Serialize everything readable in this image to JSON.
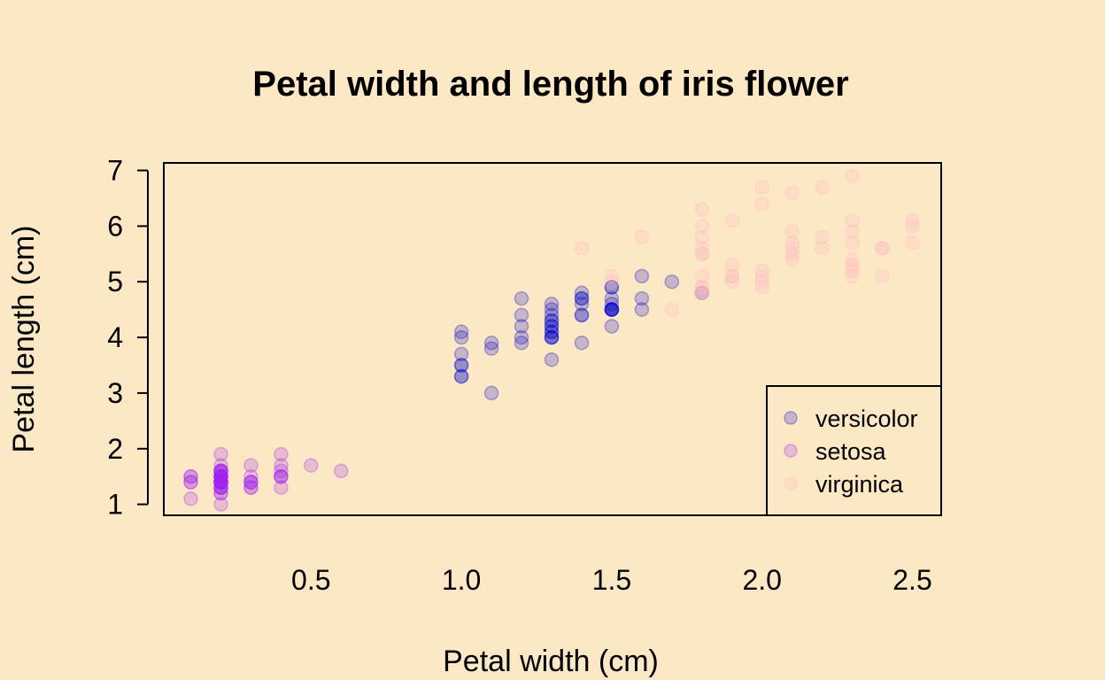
{
  "chart_data": {
    "type": "scatter",
    "title": "Petal width and length of iris flower",
    "xlabel": "Petal width (cm)",
    "ylabel": "Petal length (cm)",
    "xlim": [
      0.1,
      2.5
    ],
    "ylim": [
      1,
      6.9
    ],
    "x_ticks": [
      0.5,
      1.0,
      1.5,
      2.0,
      2.5
    ],
    "x_tick_labels": [
      "0.5",
      "1.0",
      "1.5",
      "2.0",
      "2.5"
    ],
    "y_ticks": [
      1,
      2,
      3,
      4,
      5,
      6,
      7
    ],
    "y_tick_labels": [
      "1",
      "2",
      "3",
      "4",
      "5",
      "6",
      "7"
    ],
    "grid": false,
    "legend_position": "bottom-right",
    "series": [
      {
        "name": "versicolor",
        "color": "#0000cd",
        "points": [
          [
            1.4,
            4.7
          ],
          [
            1.5,
            4.5
          ],
          [
            1.5,
            4.9
          ],
          [
            1.3,
            4.0
          ],
          [
            1.5,
            4.6
          ],
          [
            1.3,
            4.5
          ],
          [
            1.6,
            4.7
          ],
          [
            1.0,
            3.3
          ],
          [
            1.3,
            4.6
          ],
          [
            1.4,
            3.9
          ],
          [
            1.0,
            3.5
          ],
          [
            1.5,
            4.2
          ],
          [
            1.0,
            4.0
          ],
          [
            1.4,
            4.7
          ],
          [
            1.3,
            3.6
          ],
          [
            1.4,
            4.4
          ],
          [
            1.5,
            4.5
          ],
          [
            1.0,
            4.1
          ],
          [
            1.5,
            4.5
          ],
          [
            1.1,
            3.9
          ],
          [
            1.8,
            4.8
          ],
          [
            1.3,
            4.0
          ],
          [
            1.5,
            4.9
          ],
          [
            1.2,
            4.7
          ],
          [
            1.3,
            4.3
          ],
          [
            1.4,
            4.4
          ],
          [
            1.4,
            4.8
          ],
          [
            1.7,
            5.0
          ],
          [
            1.5,
            4.5
          ],
          [
            1.0,
            3.5
          ],
          [
            1.1,
            3.8
          ],
          [
            1.0,
            3.7
          ],
          [
            1.2,
            3.9
          ],
          [
            1.6,
            5.1
          ],
          [
            1.5,
            4.5
          ],
          [
            1.6,
            4.5
          ],
          [
            1.5,
            4.7
          ],
          [
            1.3,
            4.4
          ],
          [
            1.3,
            4.1
          ],
          [
            1.3,
            4.0
          ],
          [
            1.2,
            4.4
          ],
          [
            1.4,
            4.6
          ],
          [
            1.2,
            4.0
          ],
          [
            1.0,
            3.3
          ],
          [
            1.3,
            4.2
          ],
          [
            1.2,
            4.2
          ],
          [
            1.3,
            4.2
          ],
          [
            1.3,
            4.3
          ],
          [
            1.1,
            3.0
          ],
          [
            1.3,
            4.1
          ]
        ]
      },
      {
        "name": "setosa",
        "color": "#a020f0",
        "points": [
          [
            0.2,
            1.4
          ],
          [
            0.2,
            1.4
          ],
          [
            0.2,
            1.3
          ],
          [
            0.2,
            1.5
          ],
          [
            0.2,
            1.4
          ],
          [
            0.4,
            1.7
          ],
          [
            0.3,
            1.4
          ],
          [
            0.2,
            1.5
          ],
          [
            0.2,
            1.4
          ],
          [
            0.1,
            1.5
          ],
          [
            0.2,
            1.5
          ],
          [
            0.2,
            1.6
          ],
          [
            0.1,
            1.4
          ],
          [
            0.1,
            1.1
          ],
          [
            0.2,
            1.2
          ],
          [
            0.4,
            1.5
          ],
          [
            0.4,
            1.3
          ],
          [
            0.3,
            1.4
          ],
          [
            0.3,
            1.7
          ],
          [
            0.3,
            1.5
          ],
          [
            0.2,
            1.7
          ],
          [
            0.4,
            1.5
          ],
          [
            0.2,
            1.0
          ],
          [
            0.5,
            1.7
          ],
          [
            0.2,
            1.9
          ],
          [
            0.2,
            1.6
          ],
          [
            0.4,
            1.6
          ],
          [
            0.2,
            1.5
          ],
          [
            0.2,
            1.4
          ],
          [
            0.2,
            1.6
          ],
          [
            0.2,
            1.6
          ],
          [
            0.4,
            1.5
          ],
          [
            0.1,
            1.5
          ],
          [
            0.2,
            1.4
          ],
          [
            0.2,
            1.5
          ],
          [
            0.2,
            1.2
          ],
          [
            0.2,
            1.3
          ],
          [
            0.1,
            1.4
          ],
          [
            0.2,
            1.3
          ],
          [
            0.2,
            1.5
          ],
          [
            0.3,
            1.3
          ],
          [
            0.3,
            1.3
          ],
          [
            0.2,
            1.3
          ],
          [
            0.6,
            1.6
          ],
          [
            0.4,
            1.9
          ],
          [
            0.3,
            1.4
          ],
          [
            0.2,
            1.6
          ],
          [
            0.2,
            1.4
          ],
          [
            0.2,
            1.5
          ],
          [
            0.2,
            1.4
          ]
        ]
      },
      {
        "name": "virginica",
        "color": "#ffb6c1",
        "points": [
          [
            2.5,
            6.0
          ],
          [
            1.9,
            5.1
          ],
          [
            2.1,
            5.9
          ],
          [
            1.8,
            5.6
          ],
          [
            2.2,
            5.8
          ],
          [
            2.1,
            6.6
          ],
          [
            1.7,
            4.5
          ],
          [
            1.8,
            6.3
          ],
          [
            1.8,
            5.8
          ],
          [
            2.5,
            6.1
          ],
          [
            2.0,
            5.1
          ],
          [
            1.9,
            5.3
          ],
          [
            2.1,
            5.5
          ],
          [
            2.0,
            5.0
          ],
          [
            2.4,
            5.1
          ],
          [
            2.3,
            5.3
          ],
          [
            1.8,
            5.5
          ],
          [
            2.2,
            6.7
          ],
          [
            2.3,
            6.9
          ],
          [
            1.5,
            5.0
          ],
          [
            2.3,
            5.7
          ],
          [
            2.0,
            4.9
          ],
          [
            2.0,
            6.7
          ],
          [
            1.8,
            4.9
          ],
          [
            2.1,
            5.7
          ],
          [
            1.8,
            6.0
          ],
          [
            1.8,
            4.8
          ],
          [
            1.8,
            4.9
          ],
          [
            2.1,
            5.6
          ],
          [
            1.6,
            5.8
          ],
          [
            1.9,
            6.1
          ],
          [
            2.0,
            6.4
          ],
          [
            2.2,
            5.6
          ],
          [
            1.5,
            5.1
          ],
          [
            1.4,
            5.6
          ],
          [
            2.3,
            6.1
          ],
          [
            2.4,
            5.6
          ],
          [
            1.8,
            5.5
          ],
          [
            1.8,
            4.8
          ],
          [
            2.1,
            5.4
          ],
          [
            2.4,
            5.6
          ],
          [
            2.3,
            5.1
          ],
          [
            1.9,
            5.1
          ],
          [
            2.3,
            5.9
          ],
          [
            2.5,
            5.7
          ],
          [
            2.3,
            5.2
          ],
          [
            1.9,
            5.0
          ],
          [
            2.0,
            5.2
          ],
          [
            2.3,
            5.4
          ],
          [
            1.8,
            5.1
          ]
        ]
      }
    ]
  }
}
